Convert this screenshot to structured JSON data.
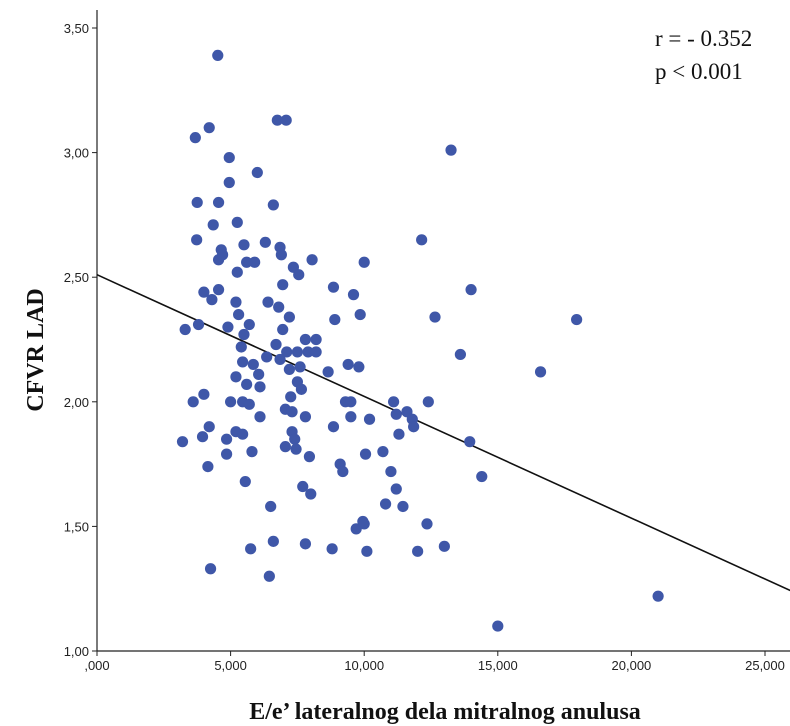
{
  "chart_data": {
    "type": "scatter",
    "xlabel": "E/e’ lateralnog dela mitralnog anulusa",
    "ylabel": "CFVR  LAD",
    "xlim": [
      0,
      26000
    ],
    "ylim": [
      1.0,
      3.5
    ],
    "x_ticks": [
      {
        "value": 0,
        "label": ",000"
      },
      {
        "value": 5000,
        "label": "5,000"
      },
      {
        "value": 10000,
        "label": "10,000"
      },
      {
        "value": 15000,
        "label": "15,000"
      },
      {
        "value": 20000,
        "label": "20,000"
      },
      {
        "value": 25000,
        "label": "25,000"
      }
    ],
    "y_ticks": [
      {
        "value": 1.0,
        "label": "1,00"
      },
      {
        "value": 1.5,
        "label": "1,50"
      },
      {
        "value": 2.0,
        "label": "2,00"
      },
      {
        "value": 2.5,
        "label": "2,50"
      },
      {
        "value": 3.0,
        "label": "3,00"
      },
      {
        "value": 3.5,
        "label": "3,50"
      }
    ],
    "grid": false,
    "legend": "none",
    "marker_color": "#3f57a8",
    "line_color": "#111111",
    "annotations": [
      "r = - 0.352",
      "p < 0.001"
    ],
    "regression_line": {
      "x": [
        0,
        26000
      ],
      "y": [
        2.51,
        1.24
      ]
    },
    "points": [
      [
        4520,
        3.39
      ],
      [
        6750,
        3.13
      ],
      [
        7080,
        3.13
      ],
      [
        3680,
        3.06
      ],
      [
        4200,
        3.1
      ],
      [
        13250,
        3.01
      ],
      [
        4950,
        2.98
      ],
      [
        6000,
        2.92
      ],
      [
        4950,
        2.88
      ],
      [
        3750,
        2.8
      ],
      [
        4550,
        2.8
      ],
      [
        6600,
        2.79
      ],
      [
        5250,
        2.72
      ],
      [
        4350,
        2.71
      ],
      [
        3730,
        2.65
      ],
      [
        6300,
        2.64
      ],
      [
        12150,
        2.65
      ],
      [
        4650,
        2.61
      ],
      [
        6850,
        2.62
      ],
      [
        5500,
        2.63
      ],
      [
        4550,
        2.57
      ],
      [
        4700,
        2.59
      ],
      [
        6900,
        2.59
      ],
      [
        5900,
        2.56
      ],
      [
        5600,
        2.56
      ],
      [
        8050,
        2.57
      ],
      [
        10000,
        2.56
      ],
      [
        7350,
        2.54
      ],
      [
        7550,
        2.51
      ],
      [
        5250,
        2.52
      ],
      [
        6950,
        2.47
      ],
      [
        4000,
        2.44
      ],
      [
        4550,
        2.45
      ],
      [
        8850,
        2.46
      ],
      [
        9600,
        2.43
      ],
      [
        14000,
        2.45
      ],
      [
        4300,
        2.41
      ],
      [
        5200,
        2.4
      ],
      [
        6400,
        2.4
      ],
      [
        6800,
        2.38
      ],
      [
        5300,
        2.35
      ],
      [
        7200,
        2.34
      ],
      [
        9850,
        2.35
      ],
      [
        12650,
        2.34
      ],
      [
        17950,
        2.33
      ],
      [
        3300,
        2.29
      ],
      [
        3800,
        2.31
      ],
      [
        4900,
        2.3
      ],
      [
        5700,
        2.31
      ],
      [
        5500,
        2.27
      ],
      [
        6950,
        2.29
      ],
      [
        8900,
        2.33
      ],
      [
        7800,
        2.25
      ],
      [
        8200,
        2.25
      ],
      [
        5400,
        2.22
      ],
      [
        6700,
        2.23
      ],
      [
        7100,
        2.2
      ],
      [
        7500,
        2.2
      ],
      [
        7900,
        2.2
      ],
      [
        8200,
        2.2
      ],
      [
        13600,
        2.19
      ],
      [
        5450,
        2.16
      ],
      [
        5850,
        2.15
      ],
      [
        6350,
        2.18
      ],
      [
        6850,
        2.17
      ],
      [
        9400,
        2.15
      ],
      [
        9800,
        2.14
      ],
      [
        7200,
        2.13
      ],
      [
        7600,
        2.14
      ],
      [
        6050,
        2.11
      ],
      [
        8650,
        2.12
      ],
      [
        16600,
        2.12
      ],
      [
        5200,
        2.1
      ],
      [
        7500,
        2.08
      ],
      [
        5600,
        2.07
      ],
      [
        6100,
        2.06
      ],
      [
        7650,
        2.05
      ],
      [
        4000,
        2.03
      ],
      [
        3600,
        2.0
      ],
      [
        5000,
        2.0
      ],
      [
        5450,
        2.0
      ],
      [
        5700,
        1.99
      ],
      [
        7250,
        2.02
      ],
      [
        9300,
        2.0
      ],
      [
        9500,
        2.0
      ],
      [
        11100,
        2.0
      ],
      [
        12400,
        2.0
      ],
      [
        7050,
        1.97
      ],
      [
        7300,
        1.96
      ],
      [
        7800,
        1.94
      ],
      [
        6100,
        1.94
      ],
      [
        9500,
        1.94
      ],
      [
        10200,
        1.93
      ],
      [
        11200,
        1.95
      ],
      [
        11600,
        1.96
      ],
      [
        11800,
        1.93
      ],
      [
        4200,
        1.9
      ],
      [
        7300,
        1.88
      ],
      [
        5200,
        1.88
      ],
      [
        5450,
        1.87
      ],
      [
        3950,
        1.86
      ],
      [
        4850,
        1.85
      ],
      [
        7400,
        1.85
      ],
      [
        8850,
        1.9
      ],
      [
        11300,
        1.87
      ],
      [
        11850,
        1.9
      ],
      [
        3200,
        1.84
      ],
      [
        4850,
        1.79
      ],
      [
        5800,
        1.8
      ],
      [
        7050,
        1.82
      ],
      [
        7450,
        1.81
      ],
      [
        7950,
        1.78
      ],
      [
        9100,
        1.75
      ],
      [
        9200,
        1.72
      ],
      [
        10050,
        1.79
      ],
      [
        10700,
        1.8
      ],
      [
        13950,
        1.84
      ],
      [
        14400,
        1.7
      ],
      [
        4150,
        1.74
      ],
      [
        5550,
        1.68
      ],
      [
        7700,
        1.66
      ],
      [
        8000,
        1.63
      ],
      [
        11000,
        1.72
      ],
      [
        11200,
        1.65
      ],
      [
        10800,
        1.59
      ],
      [
        11450,
        1.58
      ],
      [
        6500,
        1.58
      ],
      [
        9700,
        1.49
      ],
      [
        9950,
        1.52
      ],
      [
        10000,
        1.51
      ],
      [
        12350,
        1.51
      ],
      [
        6600,
        1.44
      ],
      [
        5750,
        1.41
      ],
      [
        7800,
        1.43
      ],
      [
        8800,
        1.41
      ],
      [
        10100,
        1.4
      ],
      [
        12000,
        1.4
      ],
      [
        13000,
        1.42
      ],
      [
        4250,
        1.33
      ],
      [
        6450,
        1.3
      ],
      [
        21000,
        1.22
      ],
      [
        15000,
        1.1
      ]
    ]
  }
}
